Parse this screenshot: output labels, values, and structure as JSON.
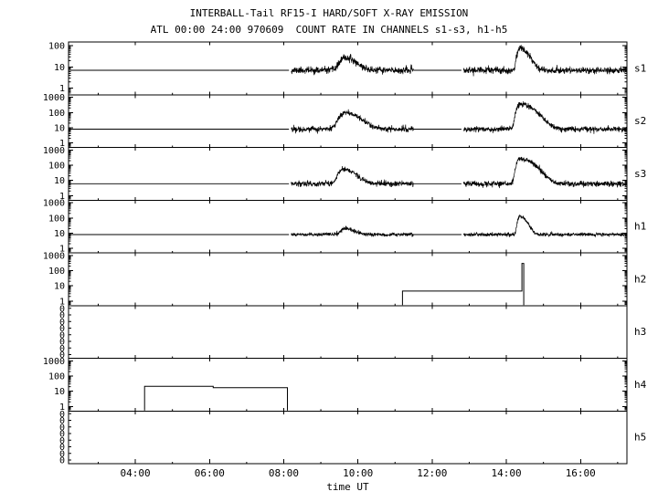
{
  "title": "INTERBALL-Tail RF15-I HARD/SOFT X-RAY EMISSION",
  "subtitle": "ATL 00:00 24:00 970609  COUNT RATE IN CHANNELS s1-s3, h1-h5",
  "xlabel": "time UT",
  "colors": {
    "foreground": "#000000",
    "background": "#ffffff"
  },
  "chart_data": {
    "type": "line",
    "title": "INTERBALL-Tail RF15-I HARD/SOFT X-RAY EMISSION",
    "subtitle": "ATL 00:00 24:00 970609  COUNT RATE IN CHANNELS s1-s3, h1-h5",
    "xlabel": "time UT",
    "x_axis": {
      "unit": "hours UT",
      "range_hours": [
        2.2,
        17.25
      ],
      "major_ticks": [
        {
          "hour": 4,
          "label": "04:00"
        },
        {
          "hour": 6,
          "label": "06:00"
        },
        {
          "hour": 8,
          "label": "08:00"
        },
        {
          "hour": 10,
          "label": "10:00"
        },
        {
          "hour": 12,
          "label": "12:00"
        },
        {
          "hour": 14,
          "label": "14:00"
        },
        {
          "hour": 16,
          "label": "16:00"
        }
      ],
      "minor_tick_step_hours": 1
    },
    "panels": [
      {
        "id": "s1",
        "label": "s1",
        "yscale": "log",
        "y_range": [
          0.5,
          150
        ],
        "y_ticks": [
          {
            "v": 1,
            "label": "1"
          },
          {
            "v": 10,
            "label": "10"
          },
          {
            "v": 100,
            "label": "100"
          }
        ],
        "baseline": 7,
        "noise_sigma_log10": 0.08,
        "seed": 11,
        "segments": [
          {
            "kind": "quiet",
            "t0": 2.2,
            "t1": 8.15
          },
          {
            "kind": "noisy",
            "t0": 8.2,
            "t1": 11.5
          },
          {
            "kind": "quiet",
            "t0": 11.5,
            "t1": 12.8
          },
          {
            "kind": "noisy",
            "t0": 12.85,
            "t1": 17.25
          }
        ],
        "peaks": [
          {
            "t": 9.65,
            "amp": 20,
            "rise_h": 0.12,
            "fall_h": 0.25
          },
          {
            "t": 14.35,
            "amp": 70,
            "rise_h": 0.05,
            "fall_h": 0.2
          }
        ]
      },
      {
        "id": "s2",
        "label": "s2",
        "yscale": "log",
        "y_range": [
          0.5,
          1500
        ],
        "y_ticks": [
          {
            "v": 1,
            "label": "1"
          },
          {
            "v": 10,
            "label": "10"
          },
          {
            "v": 100,
            "label": "100"
          },
          {
            "v": 1000,
            "label": "1000"
          }
        ],
        "baseline": 8,
        "noise_sigma_log10": 0.09,
        "seed": 22,
        "segments": [
          {
            "kind": "quiet",
            "t0": 2.2,
            "t1": 8.15
          },
          {
            "kind": "noisy",
            "t0": 8.2,
            "t1": 11.5
          },
          {
            "kind": "quiet",
            "t0": 11.5,
            "t1": 12.8
          },
          {
            "kind": "noisy",
            "t0": 12.85,
            "t1": 17.25
          }
        ],
        "peaks": [
          {
            "t": 9.65,
            "amp": 90,
            "rise_h": 0.12,
            "fall_h": 0.3
          },
          {
            "t": 14.35,
            "amp": 350,
            "rise_h": 0.06,
            "fall_h": 0.3
          }
        ]
      },
      {
        "id": "s3",
        "label": "s3",
        "yscale": "log",
        "y_range": [
          0.5,
          1500
        ],
        "y_ticks": [
          {
            "v": 1,
            "label": "1"
          },
          {
            "v": 10,
            "label": "10"
          },
          {
            "v": 100,
            "label": "100"
          },
          {
            "v": 1000,
            "label": "1000"
          }
        ],
        "baseline": 6,
        "noise_sigma_log10": 0.09,
        "seed": 33,
        "segments": [
          {
            "kind": "quiet",
            "t0": 2.2,
            "t1": 8.15
          },
          {
            "kind": "noisy",
            "t0": 8.2,
            "t1": 11.5
          },
          {
            "kind": "quiet",
            "t0": 11.5,
            "t1": 12.8
          },
          {
            "kind": "noisy",
            "t0": 12.85,
            "t1": 17.25
          }
        ],
        "peaks": [
          {
            "t": 9.6,
            "amp": 50,
            "rise_h": 0.1,
            "fall_h": 0.25
          },
          {
            "t": 14.35,
            "amp": 250,
            "rise_h": 0.06,
            "fall_h": 0.3
          }
        ]
      },
      {
        "id": "h1",
        "label": "h1",
        "yscale": "log",
        "y_range": [
          0.5,
          1500
        ],
        "y_ticks": [
          {
            "v": 1,
            "label": "1"
          },
          {
            "v": 10,
            "label": "10"
          },
          {
            "v": 100,
            "label": "100"
          },
          {
            "v": 1000,
            "label": "1000"
          }
        ],
        "baseline": 8,
        "noise_sigma_log10": 0.06,
        "seed": 44,
        "segments": [
          {
            "kind": "quiet",
            "t0": 2.2,
            "t1": 8.15
          },
          {
            "kind": "noisy",
            "t0": 8.2,
            "t1": 11.5
          },
          {
            "kind": "quiet",
            "t0": 11.5,
            "t1": 12.8
          },
          {
            "kind": "noisy",
            "t0": 12.85,
            "t1": 17.25
          }
        ],
        "peaks": [
          {
            "t": 9.65,
            "amp": 12,
            "rise_h": 0.1,
            "fall_h": 0.2
          },
          {
            "t": 14.35,
            "amp": 120,
            "rise_h": 0.04,
            "fall_h": 0.15
          }
        ]
      },
      {
        "id": "h2",
        "label": "h2",
        "yscale": "log",
        "y_range": [
          0.5,
          1500
        ],
        "y_ticks": [
          {
            "v": 1,
            "label": "1"
          },
          {
            "v": 10,
            "label": "10"
          },
          {
            "v": 100,
            "label": "100"
          },
          {
            "v": 1000,
            "label": "1000"
          }
        ],
        "steps": [
          {
            "t0": 11.2,
            "t1": 14.42,
            "level": 4.5
          },
          {
            "t0": 14.42,
            "t1": 14.47,
            "level": 300
          }
        ]
      },
      {
        "id": "h3",
        "label": "h3",
        "yscale": "zero",
        "zero_tick_count": 8,
        "zero_label": "0"
      },
      {
        "id": "h4",
        "label": "h4",
        "yscale": "log",
        "y_range": [
          0.5,
          1500
        ],
        "y_ticks": [
          {
            "v": 1,
            "label": "1"
          },
          {
            "v": 10,
            "label": "10"
          },
          {
            "v": 100,
            "label": "100"
          },
          {
            "v": 1000,
            "label": "1000"
          }
        ],
        "steps": [
          {
            "t0": 4.25,
            "t1": 6.1,
            "level": 21
          },
          {
            "t0": 6.1,
            "t1": 8.1,
            "level": 17
          }
        ]
      },
      {
        "id": "h5",
        "label": "h5",
        "yscale": "zero",
        "zero_tick_count": 8,
        "zero_label": "0"
      }
    ]
  }
}
